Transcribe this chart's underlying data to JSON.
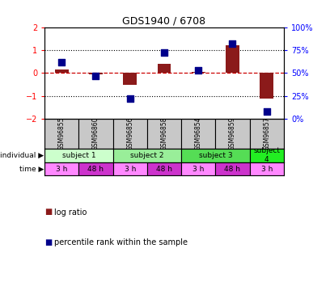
{
  "title": "GDS1940 / 6708",
  "samples": [
    "GSM96855",
    "GSM96860",
    "GSM96856",
    "GSM96858",
    "GSM96854",
    "GSM96859",
    "GSM96857"
  ],
  "log_ratio": [
    0.15,
    -0.05,
    -0.5,
    0.4,
    0.05,
    1.2,
    -1.1
  ],
  "percentile": [
    62,
    47,
    22,
    72,
    53,
    82,
    8
  ],
  "ylim_left": [
    -2,
    2
  ],
  "ylim_right": [
    0,
    100
  ],
  "bar_color": "#8B1A1A",
  "dot_color": "#00008B",
  "zero_line_color": "#CC0000",
  "grid_color": "black",
  "gsm_bg_color": "#C8C8C8",
  "ind_data": [
    {
      "label": "subject 1",
      "start": 0,
      "end": 2,
      "color": "#CCFFCC"
    },
    {
      "label": "subject 2",
      "start": 2,
      "end": 4,
      "color": "#99EE99"
    },
    {
      "label": "subject 3",
      "start": 4,
      "end": 6,
      "color": "#55DD55"
    },
    {
      "label": "subject\n4",
      "start": 6,
      "end": 7,
      "color": "#22EE22"
    }
  ],
  "time_labels": [
    "3 h",
    "48 h",
    "3 h",
    "48 h",
    "3 h",
    "48 h",
    "3 h"
  ],
  "time_color_light": "#FF88FF",
  "time_color_dark": "#CC33CC",
  "bg_color": "#FFFFFF"
}
